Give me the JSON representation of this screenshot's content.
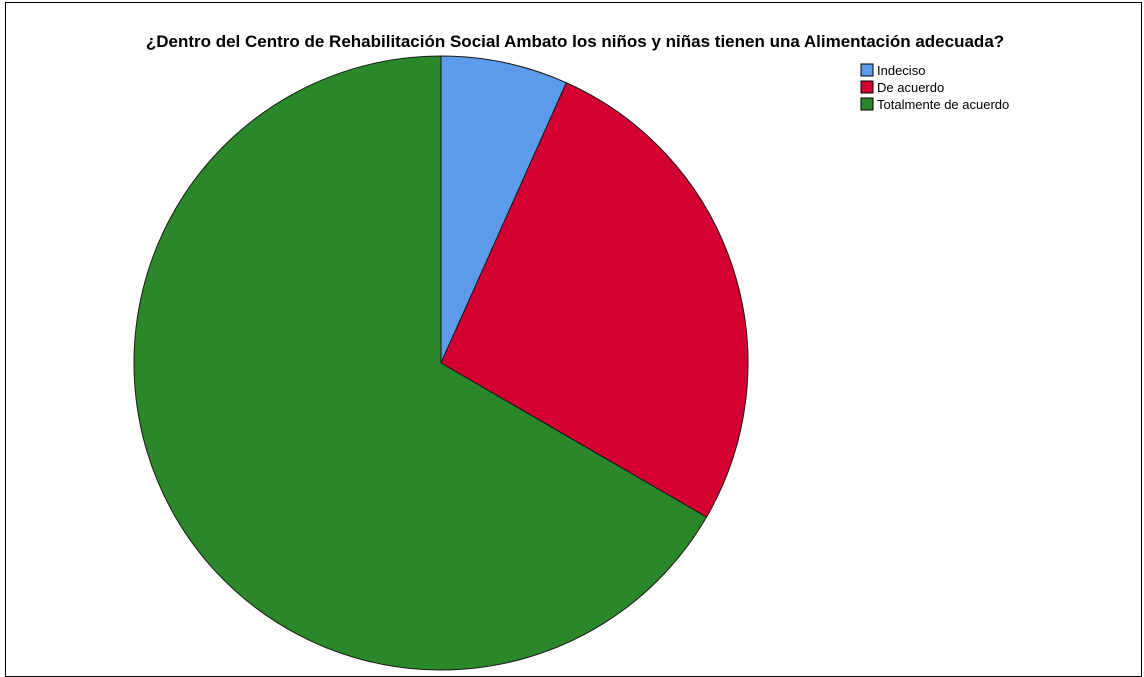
{
  "chart_data": {
    "type": "pie",
    "title": "¿Dentro del Centro de Rehabilitación Social Ambato los niños y niñas tienen una Alimentación adecuada?",
    "categories": [
      "Indeciso",
      "De acuerdo",
      "Totalmente de acuerdo"
    ],
    "values": [
      6.7,
      26.7,
      66.7
    ],
    "colors": [
      "#5b9bea",
      "#d50032",
      "#2a872a"
    ],
    "start_angle_deg": 0,
    "direction": "clockwise",
    "legend_placement": "top-right"
  }
}
